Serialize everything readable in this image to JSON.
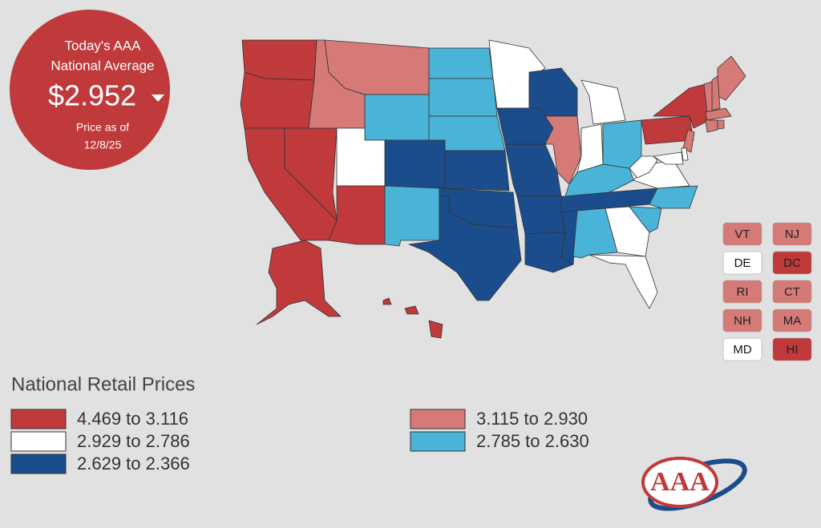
{
  "badge": {
    "line1": "Today's AAA",
    "line2": "National Average",
    "price": "$2.952",
    "date_label": "Price as of",
    "date": "12/8/25"
  },
  "legend": {
    "title": "National Retail Prices",
    "items": [
      {
        "label": "4.469 to 3.116",
        "color": "#c0393b"
      },
      {
        "label": "2.929 to 2.786",
        "color": "#ffffff"
      },
      {
        "label": "2.629 to 2.366",
        "color": "#1b4d8c"
      },
      {
        "label": "3.115 to 2.930",
        "color": "#d57a77"
      },
      {
        "label": "2.785 to 2.630",
        "color": "#4ab3d8"
      }
    ]
  },
  "map": {
    "region_tiers": [
      0,
      0,
      0,
      0,
      3,
      3,
      4,
      1,
      0,
      2,
      4,
      4,
      4,
      4,
      2,
      2,
      2,
      1,
      2,
      2,
      2,
      2,
      2,
      3,
      1,
      1,
      4,
      4,
      2,
      2,
      4,
      1,
      1,
      4,
      4,
      1,
      1,
      0,
      0,
      3,
      1,
      1,
      3,
      3,
      3,
      3,
      3,
      3,
      0,
      0,
      0,
      0
    ]
  },
  "small_states": [
    {
      "label": "VT",
      "tier": 3
    },
    {
      "label": "NJ",
      "tier": 3
    },
    {
      "label": "DE",
      "tier": 1
    },
    {
      "label": "DC",
      "tier": 0
    },
    {
      "label": "RI",
      "tier": 3
    },
    {
      "label": "CT",
      "tier": 3
    },
    {
      "label": "NH",
      "tier": 3
    },
    {
      "label": "MA",
      "tier": 3
    },
    {
      "label": "MD",
      "tier": 1
    },
    {
      "label": "HI",
      "tier": 0
    }
  ],
  "logo": "AAA"
}
